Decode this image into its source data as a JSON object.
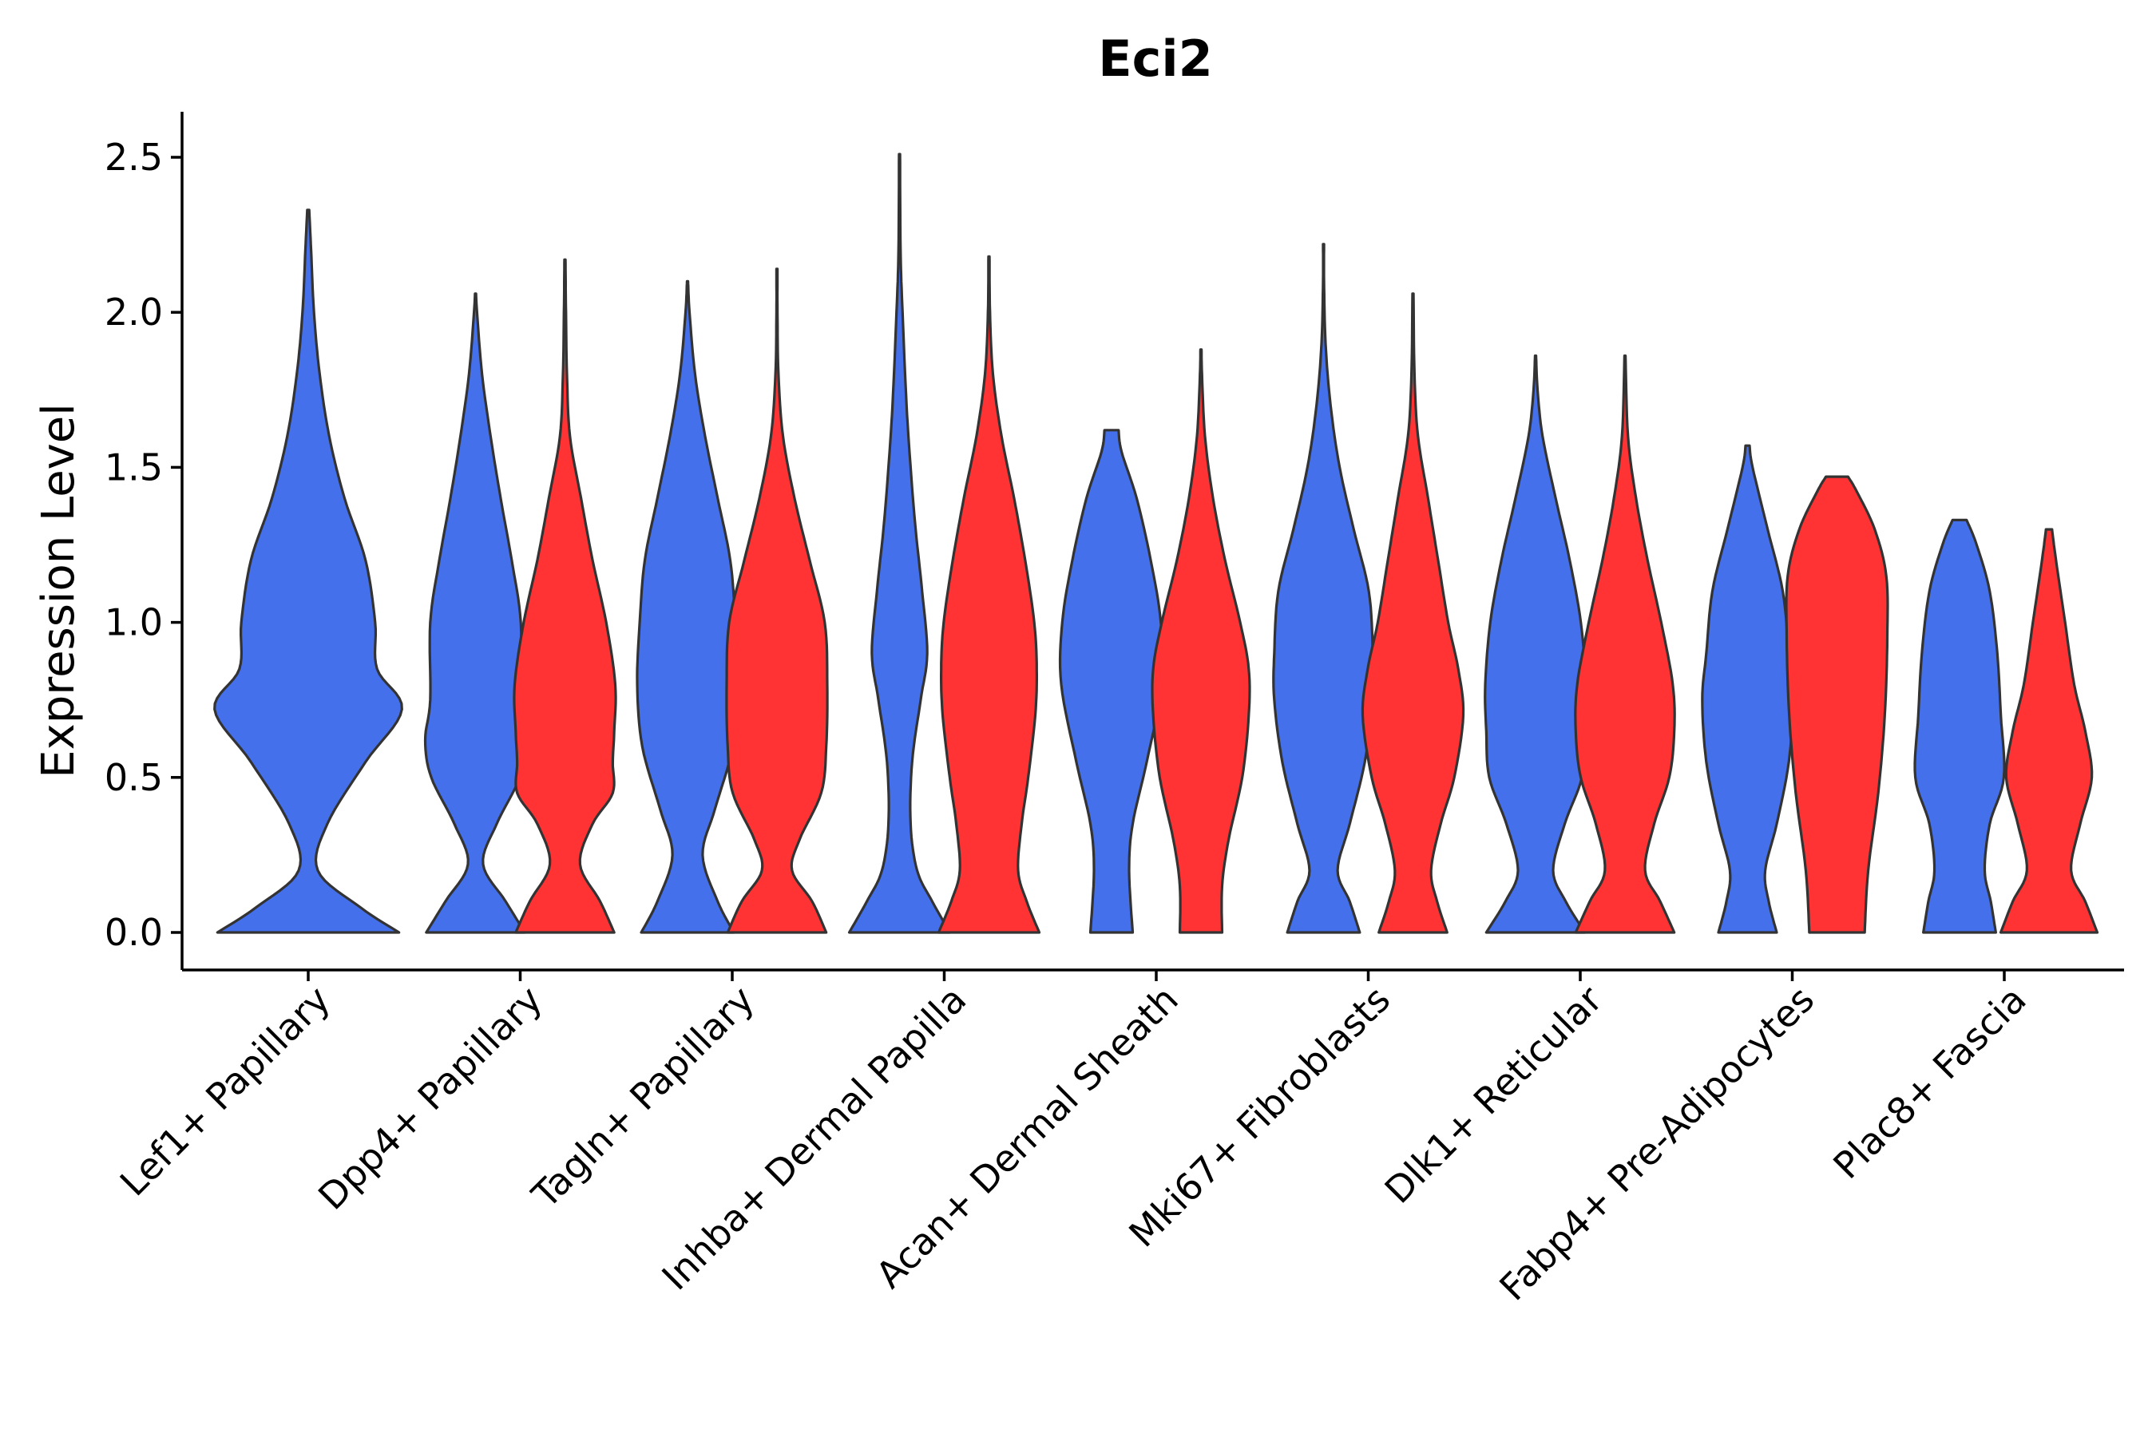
{
  "chart_data": {
    "type": "violin",
    "title": "Eci2",
    "xlabel": "",
    "ylabel": "Expression Level",
    "ylim": [
      -0.12,
      2.63
    ],
    "yticks": [
      0.0,
      0.5,
      1.0,
      1.5,
      2.0,
      2.5
    ],
    "ytick_labels": [
      "0.0",
      "0.5",
      "1.0",
      "1.5",
      "2.0",
      "2.5"
    ],
    "grid": false,
    "legend": "none",
    "categories": [
      "Lef1+ Papillary",
      "Dpp4+ Papillary",
      "Tagln+ Papillary",
      "Inhba+ Dermal Papilla",
      "Acan+ Dermal Sheath",
      "Mki67+ Fibroblasts",
      "Dlk1+ Reticular",
      "Fabp4+ Pre-Adipocytes",
      "Plac8+ Fascia"
    ],
    "series": [
      {
        "name": "blue group",
        "color": "#4470EB"
      },
      {
        "name": "red group",
        "color": "#FF3333"
      }
    ],
    "violins": [
      {
        "category": "Lef1+ Papillary",
        "series": "blue group",
        "max": 2.33,
        "profile": [
          [
            0.0,
            0.95
          ],
          [
            0.08,
            0.55
          ],
          [
            0.2,
            0.1
          ],
          [
            0.35,
            0.2
          ],
          [
            0.55,
            0.6
          ],
          [
            0.72,
            0.98
          ],
          [
            0.85,
            0.72
          ],
          [
            1.0,
            0.7
          ],
          [
            1.2,
            0.6
          ],
          [
            1.4,
            0.38
          ],
          [
            1.6,
            0.22
          ],
          [
            1.8,
            0.12
          ],
          [
            2.0,
            0.06
          ],
          [
            2.2,
            0.03
          ],
          [
            2.33,
            0.01
          ]
        ]
      },
      {
        "category": "Dpp4+ Papillary",
        "series": "blue group",
        "max": 2.06,
        "profile": [
          [
            0.0,
            0.98
          ],
          [
            0.1,
            0.6
          ],
          [
            0.22,
            0.15
          ],
          [
            0.35,
            0.42
          ],
          [
            0.5,
            0.88
          ],
          [
            0.62,
            1.0
          ],
          [
            0.75,
            0.9
          ],
          [
            1.0,
            0.9
          ],
          [
            1.2,
            0.72
          ],
          [
            1.4,
            0.5
          ],
          [
            1.6,
            0.3
          ],
          [
            1.8,
            0.13
          ],
          [
            2.0,
            0.03
          ],
          [
            2.06,
            0.01
          ]
        ]
      },
      {
        "category": "Dpp4+ Papillary",
        "series": "red group",
        "max": 2.17,
        "profile": [
          [
            0.0,
            0.98
          ],
          [
            0.1,
            0.7
          ],
          [
            0.22,
            0.3
          ],
          [
            0.35,
            0.55
          ],
          [
            0.45,
            0.95
          ],
          [
            0.55,
            0.95
          ],
          [
            0.65,
            0.98
          ],
          [
            0.8,
            1.0
          ],
          [
            1.0,
            0.82
          ],
          [
            1.2,
            0.55
          ],
          [
            1.4,
            0.32
          ],
          [
            1.6,
            0.1
          ],
          [
            1.8,
            0.04
          ],
          [
            2.0,
            0.02
          ],
          [
            2.17,
            0.01
          ]
        ]
      },
      {
        "category": "Tagln+ Papillary",
        "series": "blue group",
        "max": 2.1,
        "profile": [
          [
            0.0,
            0.92
          ],
          [
            0.1,
            0.6
          ],
          [
            0.25,
            0.3
          ],
          [
            0.4,
            0.55
          ],
          [
            0.6,
            0.9
          ],
          [
            0.8,
            1.0
          ],
          [
            1.0,
            0.95
          ],
          [
            1.2,
            0.85
          ],
          [
            1.4,
            0.6
          ],
          [
            1.6,
            0.35
          ],
          [
            1.8,
            0.15
          ],
          [
            2.0,
            0.04
          ],
          [
            2.1,
            0.01
          ]
        ]
      },
      {
        "category": "Tagln+ Papillary",
        "series": "red group",
        "max": 2.14,
        "profile": [
          [
            0.0,
            0.98
          ],
          [
            0.1,
            0.7
          ],
          [
            0.2,
            0.3
          ],
          [
            0.3,
            0.45
          ],
          [
            0.45,
            0.88
          ],
          [
            0.6,
            0.98
          ],
          [
            0.8,
            1.0
          ],
          [
            1.0,
            0.95
          ],
          [
            1.2,
            0.65
          ],
          [
            1.4,
            0.35
          ],
          [
            1.6,
            0.12
          ],
          [
            1.8,
            0.03
          ],
          [
            2.0,
            0.01
          ],
          [
            2.14,
            0.01
          ]
        ]
      },
      {
        "category": "Inhba+ Dermal Papilla",
        "series": "blue group",
        "max": 2.51,
        "profile": [
          [
            0.0,
            1.0
          ],
          [
            0.1,
            0.65
          ],
          [
            0.2,
            0.35
          ],
          [
            0.35,
            0.22
          ],
          [
            0.55,
            0.25
          ],
          [
            0.75,
            0.42
          ],
          [
            0.9,
            0.55
          ],
          [
            1.1,
            0.45
          ],
          [
            1.3,
            0.32
          ],
          [
            1.5,
            0.22
          ],
          [
            1.7,
            0.14
          ],
          [
            2.0,
            0.06
          ],
          [
            2.2,
            0.02
          ],
          [
            2.51,
            0.01
          ]
        ]
      },
      {
        "category": "Inhba+ Dermal Papilla",
        "series": "red group",
        "max": 2.18,
        "profile": [
          [
            0.0,
            1.0
          ],
          [
            0.1,
            0.75
          ],
          [
            0.2,
            0.58
          ],
          [
            0.35,
            0.65
          ],
          [
            0.5,
            0.78
          ],
          [
            0.7,
            0.92
          ],
          [
            0.85,
            0.95
          ],
          [
            1.0,
            0.9
          ],
          [
            1.2,
            0.72
          ],
          [
            1.4,
            0.5
          ],
          [
            1.6,
            0.25
          ],
          [
            1.8,
            0.08
          ],
          [
            2.0,
            0.02
          ],
          [
            2.18,
            0.01
          ]
        ]
      },
      {
        "category": "Acan+ Dermal Sheath",
        "series": "blue group",
        "max": 1.62,
        "profile": [
          [
            0.0,
            0.42
          ],
          [
            0.2,
            0.35
          ],
          [
            0.35,
            0.42
          ],
          [
            0.55,
            0.7
          ],
          [
            0.8,
            1.0
          ],
          [
            1.0,
            0.98
          ],
          [
            1.2,
            0.78
          ],
          [
            1.4,
            0.5
          ],
          [
            1.55,
            0.2
          ],
          [
            1.62,
            0.14
          ]
        ]
      },
      {
        "category": "Acan+ Dermal Sheath",
        "series": "red group",
        "max": 1.88,
        "profile": [
          [
            0.0,
            0.42
          ],
          [
            0.15,
            0.42
          ],
          [
            0.3,
            0.55
          ],
          [
            0.5,
            0.82
          ],
          [
            0.7,
            0.95
          ],
          [
            0.85,
            0.95
          ],
          [
            1.0,
            0.78
          ],
          [
            1.2,
            0.48
          ],
          [
            1.4,
            0.24
          ],
          [
            1.6,
            0.08
          ],
          [
            1.8,
            0.02
          ],
          [
            1.88,
            0.01
          ]
        ]
      },
      {
        "category": "Mki67+ Fibroblasts",
        "series": "blue group",
        "max": 2.22,
        "profile": [
          [
            0.0,
            0.72
          ],
          [
            0.1,
            0.52
          ],
          [
            0.2,
            0.28
          ],
          [
            0.35,
            0.52
          ],
          [
            0.55,
            0.82
          ],
          [
            0.75,
            0.98
          ],
          [
            0.9,
            0.98
          ],
          [
            1.1,
            0.9
          ],
          [
            1.3,
            0.6
          ],
          [
            1.5,
            0.32
          ],
          [
            1.7,
            0.14
          ],
          [
            1.9,
            0.04
          ],
          [
            2.1,
            0.01
          ],
          [
            2.22,
            0.01
          ]
        ]
      },
      {
        "category": "Mki67+ Fibroblasts",
        "series": "red group",
        "max": 2.06,
        "profile": [
          [
            0.0,
            0.68
          ],
          [
            0.1,
            0.48
          ],
          [
            0.2,
            0.36
          ],
          [
            0.35,
            0.55
          ],
          [
            0.5,
            0.82
          ],
          [
            0.7,
            1.0
          ],
          [
            0.85,
            0.9
          ],
          [
            1.0,
            0.7
          ],
          [
            1.2,
            0.5
          ],
          [
            1.4,
            0.3
          ],
          [
            1.6,
            0.1
          ],
          [
            1.8,
            0.03
          ],
          [
            2.06,
            0.01
          ]
        ]
      },
      {
        "category": "Dlk1+ Reticular",
        "series": "blue group",
        "max": 1.86,
        "profile": [
          [
            0.0,
            0.98
          ],
          [
            0.1,
            0.6
          ],
          [
            0.2,
            0.35
          ],
          [
            0.35,
            0.58
          ],
          [
            0.5,
            0.92
          ],
          [
            0.65,
            0.98
          ],
          [
            0.8,
            1.0
          ],
          [
            1.0,
            0.9
          ],
          [
            1.2,
            0.68
          ],
          [
            1.4,
            0.4
          ],
          [
            1.6,
            0.14
          ],
          [
            1.75,
            0.04
          ],
          [
            1.86,
            0.01
          ]
        ]
      },
      {
        "category": "Dlk1+ Reticular",
        "series": "red group",
        "max": 1.86,
        "profile": [
          [
            0.0,
            0.98
          ],
          [
            0.1,
            0.7
          ],
          [
            0.2,
            0.4
          ],
          [
            0.35,
            0.58
          ],
          [
            0.5,
            0.88
          ],
          [
            0.65,
            0.98
          ],
          [
            0.8,
            0.95
          ],
          [
            1.0,
            0.72
          ],
          [
            1.2,
            0.45
          ],
          [
            1.4,
            0.22
          ],
          [
            1.6,
            0.06
          ],
          [
            1.86,
            0.01
          ]
        ]
      },
      {
        "category": "Fabp4+ Pre-Adipocytes",
        "series": "blue group",
        "max": 1.57,
        "profile": [
          [
            0.0,
            0.58
          ],
          [
            0.1,
            0.42
          ],
          [
            0.2,
            0.35
          ],
          [
            0.35,
            0.58
          ],
          [
            0.55,
            0.82
          ],
          [
            0.75,
            0.9
          ],
          [
            0.9,
            0.82
          ],
          [
            1.1,
            0.7
          ],
          [
            1.3,
            0.4
          ],
          [
            1.5,
            0.1
          ],
          [
            1.57,
            0.04
          ]
        ]
      },
      {
        "category": "Fabp4+ Pre-Adipocytes",
        "series": "red group",
        "max": 1.47,
        "profile": [
          [
            0.0,
            0.55
          ],
          [
            0.2,
            0.62
          ],
          [
            0.45,
            0.82
          ],
          [
            0.7,
            0.95
          ],
          [
            0.95,
            1.0
          ],
          [
            1.15,
            0.98
          ],
          [
            1.3,
            0.75
          ],
          [
            1.42,
            0.4
          ],
          [
            1.47,
            0.22
          ]
        ]
      },
      {
        "category": "Plac8+ Fascia",
        "series": "blue group",
        "max": 1.33,
        "profile": [
          [
            0.0,
            0.72
          ],
          [
            0.1,
            0.62
          ],
          [
            0.2,
            0.5
          ],
          [
            0.35,
            0.6
          ],
          [
            0.5,
            0.88
          ],
          [
            0.7,
            0.82
          ],
          [
            0.9,
            0.75
          ],
          [
            1.1,
            0.6
          ],
          [
            1.25,
            0.34
          ],
          [
            1.33,
            0.14
          ]
        ]
      },
      {
        "category": "Plac8+ Fascia",
        "series": "red group",
        "max": 1.3,
        "profile": [
          [
            0.0,
            0.96
          ],
          [
            0.1,
            0.72
          ],
          [
            0.2,
            0.44
          ],
          [
            0.35,
            0.62
          ],
          [
            0.5,
            0.85
          ],
          [
            0.65,
            0.72
          ],
          [
            0.8,
            0.5
          ],
          [
            1.0,
            0.32
          ],
          [
            1.2,
            0.14
          ],
          [
            1.3,
            0.06
          ]
        ]
      }
    ]
  }
}
